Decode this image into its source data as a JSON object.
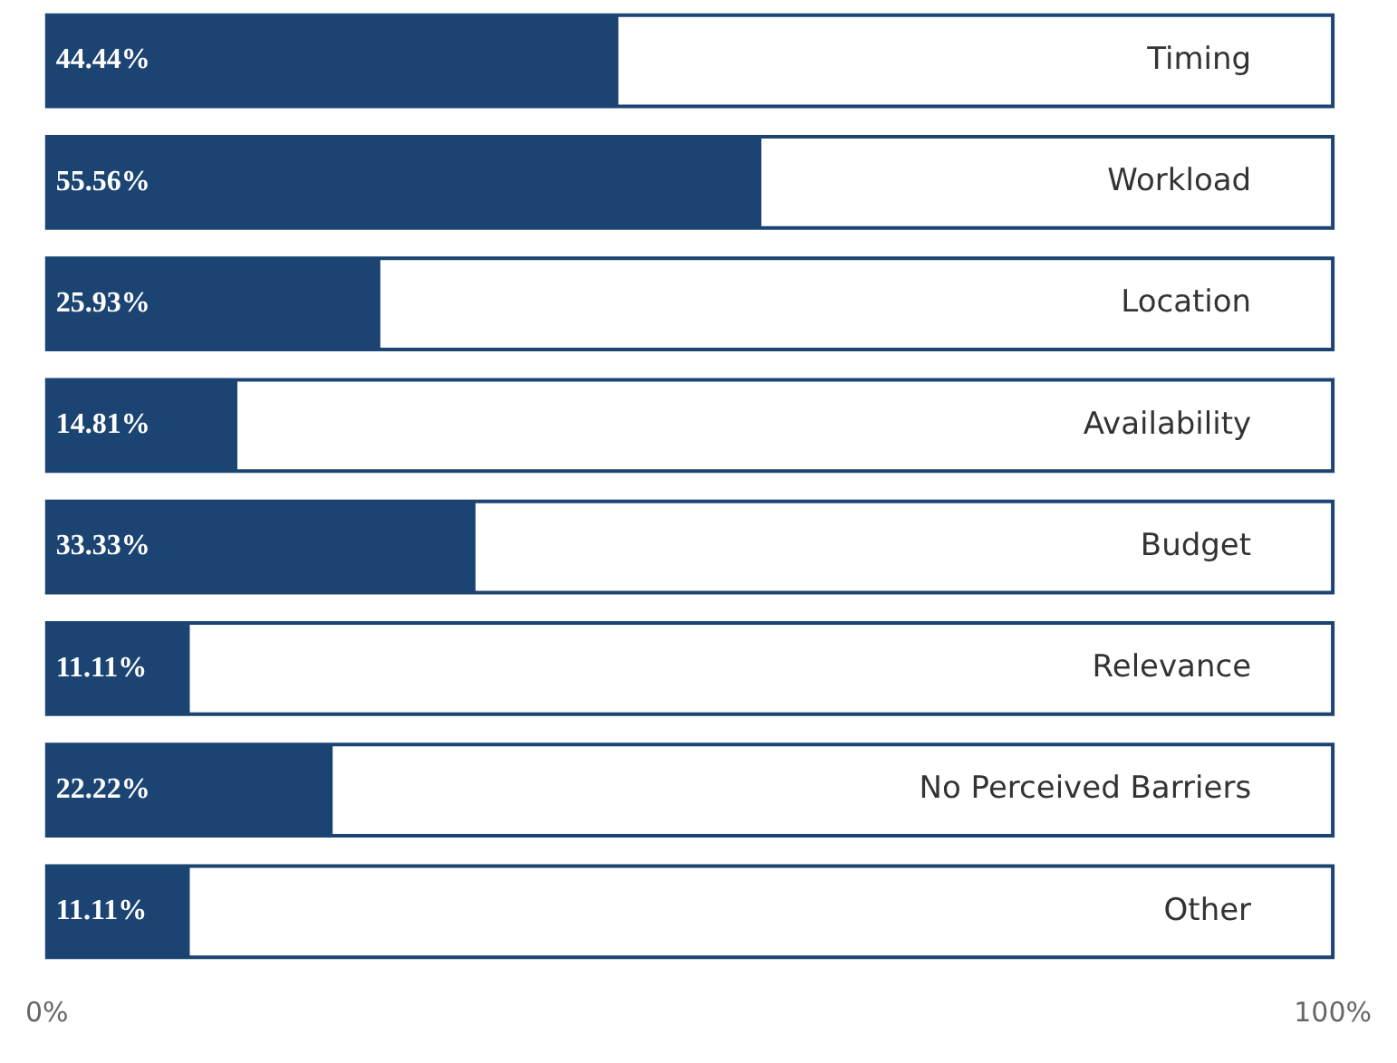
{
  "chart_data": {
    "type": "bar",
    "orientation": "horizontal",
    "categories": [
      "Timing",
      "Workload",
      "Location",
      "Availability",
      "Budget",
      "Relevance",
      "No Perceived Barriers",
      "Other"
    ],
    "series": [
      {
        "color": "#1b4472",
        "values": [
          44.44,
          55.56,
          25.93,
          14.81,
          33.33,
          11.11,
          22.22,
          11.11
        ],
        "value_labels": [
          "44.44%",
          "55.56%",
          "25.93%",
          "14.81%",
          "33.33%",
          "11.11%",
          "22.22%",
          "11.11%"
        ]
      }
    ],
    "xlim": [
      0,
      100
    ],
    "xticks": [
      {
        "value": 0,
        "label": "0%"
      },
      {
        "value": 100,
        "label": "100%"
      }
    ],
    "grid": false,
    "legend": false
  }
}
